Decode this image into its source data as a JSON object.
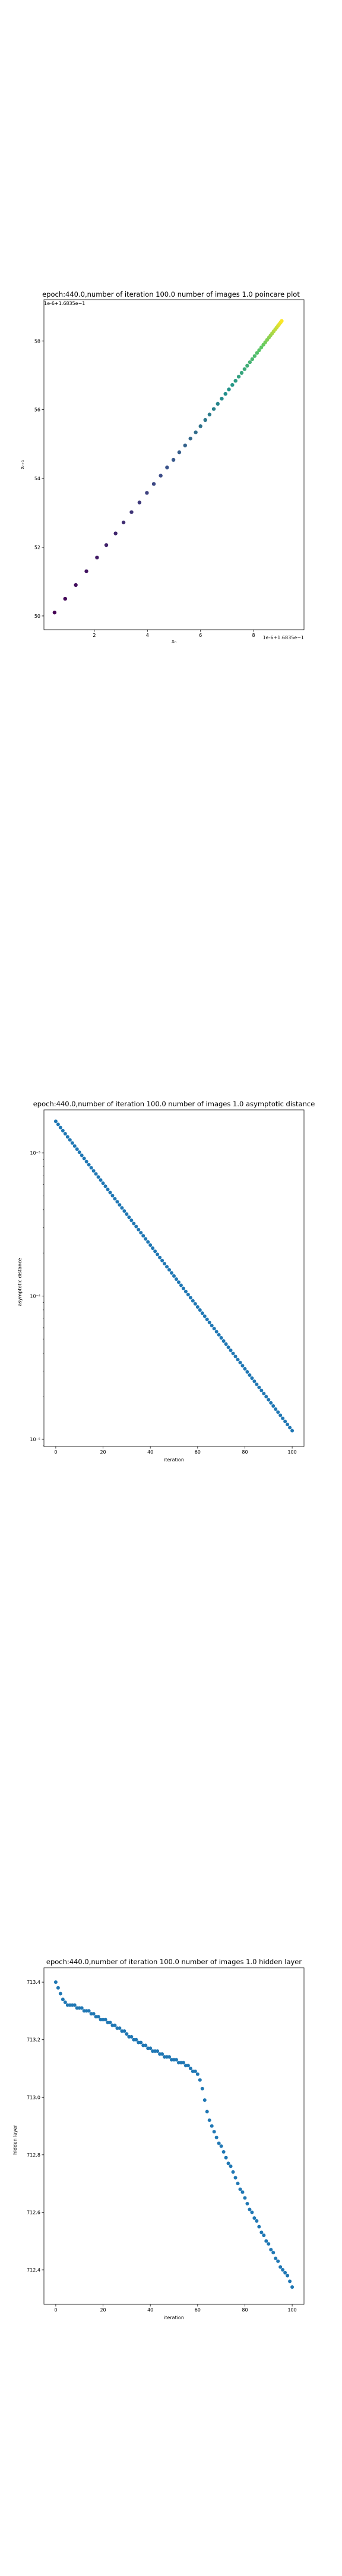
{
  "chart_data": [
    {
      "type": "scatter",
      "title": "epoch:440.0,number of iteration 100.0 number of images 1.0 poincare plot",
      "xlabel": "xₙ",
      "ylabel": "xₙ₊₁",
      "offset_text_x": "1e-6+1.6835e−1",
      "offset_text_y": "1e-6+1.6835e−1",
      "x_ticks": [
        2,
        4,
        6,
        8
      ],
      "y_ticks": [
        50,
        52,
        54,
        56,
        58
      ],
      "xlim": [
        0.1,
        9.9
      ],
      "ylim": [
        49.6,
        59.2
      ],
      "colormap": "viridis",
      "x": [
        0.5,
        0.9,
        1.3,
        1.7,
        2.1,
        2.45,
        2.8,
        3.1,
        3.4,
        3.7,
        3.98,
        4.24,
        4.5,
        4.74,
        4.98,
        5.2,
        5.42,
        5.62,
        5.82,
        6.0,
        6.18,
        6.34,
        6.5,
        6.65,
        6.8,
        6.94,
        7.07,
        7.2,
        7.32,
        7.44,
        7.55,
        7.66,
        7.76,
        7.86,
        7.95,
        8.04,
        8.13,
        8.21,
        8.29,
        8.37,
        8.44,
        8.51,
        8.58,
        8.64,
        8.7,
        8.76,
        8.82,
        8.87,
        8.92,
        8.97,
        9.02,
        9.06
      ],
      "y": [
        50.1,
        50.5,
        50.9,
        51.3,
        51.7,
        52.06,
        52.4,
        52.72,
        53.02,
        53.3,
        53.58,
        53.84,
        54.08,
        54.32,
        54.54,
        54.76,
        54.96,
        55.16,
        55.34,
        55.52,
        55.7,
        55.86,
        56.02,
        56.17,
        56.32,
        56.46,
        56.59,
        56.72,
        56.84,
        56.96,
        57.07,
        57.18,
        57.28,
        57.38,
        57.47,
        57.56,
        57.65,
        57.73,
        57.81,
        57.89,
        57.96,
        58.03,
        58.1,
        58.16,
        58.22,
        58.28,
        58.34,
        58.39,
        58.44,
        58.49,
        58.54,
        58.58
      ]
    },
    {
      "type": "scatter",
      "title": "epoch:440.0,number of iteration 100.0  number of images 1.0 asymptotic distance",
      "xlabel": "iteration",
      "ylabel": "asymptotic distance",
      "yscale": "log",
      "x_ticks": [
        0,
        20,
        40,
        60,
        80,
        100
      ],
      "y_tick_labels": [
        "10⁻³",
        "10⁻⁴",
        "10⁻⁵"
      ],
      "xlim": [
        -5,
        105
      ],
      "ylim_log10": [
        -5.05,
        -2.7
      ],
      "x_start": 0,
      "x_end": 100,
      "log10_y_start": -2.78,
      "log10_y_end": -4.94,
      "color": "#1f77b4"
    },
    {
      "type": "scatter",
      "title": "epoch:440.0,number of iteration 100.0  number of images 1.0 hidden layer",
      "xlabel": "iteration",
      "ylabel": "hidden layer",
      "x_ticks": [
        0,
        20,
        40,
        60,
        80,
        100
      ],
      "y_ticks": [
        712.4,
        712.6,
        712.8,
        713.0,
        713.2,
        713.4
      ],
      "y_tick_labels": [
        "712.4",
        "712.6",
        "712.8",
        "713.0",
        "713.2",
        "713.4"
      ],
      "xlim": [
        -5,
        105
      ],
      "ylim": [
        712.28,
        713.45
      ],
      "color": "#1f77b4",
      "x": [
        0,
        1,
        2,
        3,
        4,
        5,
        6,
        7,
        8,
        9,
        10,
        11,
        12,
        13,
        14,
        15,
        16,
        17,
        18,
        19,
        20,
        21,
        22,
        23,
        24,
        25,
        26,
        27,
        28,
        29,
        30,
        31,
        32,
        33,
        34,
        35,
        36,
        37,
        38,
        39,
        40,
        41,
        42,
        43,
        44,
        45,
        46,
        47,
        48,
        49,
        50,
        51,
        52,
        53,
        54,
        55,
        56,
        57,
        58,
        59,
        60,
        61,
        62,
        63,
        64,
        65,
        66,
        67,
        68,
        69,
        70,
        71,
        72,
        73,
        74,
        75,
        76,
        77,
        78,
        79,
        80,
        81,
        82,
        83,
        84,
        85,
        86,
        87,
        88,
        89,
        90,
        91,
        92,
        93,
        94,
        95,
        96,
        97,
        98,
        99,
        100
      ],
      "y": [
        713.4,
        713.38,
        713.36,
        713.34,
        713.33,
        713.32,
        713.32,
        713.32,
        713.32,
        713.31,
        713.31,
        713.31,
        713.3,
        713.3,
        713.3,
        713.29,
        713.29,
        713.28,
        713.28,
        713.27,
        713.27,
        713.27,
        713.26,
        713.26,
        713.25,
        713.25,
        713.24,
        713.24,
        713.23,
        713.23,
        713.22,
        713.21,
        713.21,
        713.2,
        713.2,
        713.19,
        713.19,
        713.18,
        713.18,
        713.17,
        713.17,
        713.16,
        713.16,
        713.16,
        713.15,
        713.15,
        713.14,
        713.14,
        713.14,
        713.13,
        713.13,
        713.13,
        713.12,
        713.12,
        713.12,
        713.11,
        713.11,
        713.1,
        713.09,
        713.09,
        713.08,
        713.06,
        713.03,
        712.99,
        712.95,
        712.92,
        712.9,
        712.88,
        712.86,
        712.84,
        712.83,
        712.81,
        712.79,
        712.77,
        712.76,
        712.74,
        712.72,
        712.7,
        712.68,
        712.67,
        712.65,
        712.63,
        712.61,
        712.6,
        712.58,
        712.57,
        712.55,
        712.53,
        712.52,
        712.5,
        712.49,
        712.47,
        712.46,
        712.44,
        712.43,
        712.41,
        712.4,
        712.39,
        712.38,
        712.36,
        712.34
      ]
    }
  ]
}
